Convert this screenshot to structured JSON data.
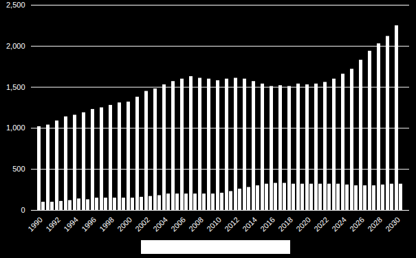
{
  "chart_data": {
    "type": "bar",
    "categories": [
      "1990",
      null,
      "1992",
      null,
      "1994",
      null,
      "1996",
      null,
      "1998",
      null,
      "2000",
      null,
      "2002",
      null,
      "2004",
      null,
      "2006",
      null,
      "2008",
      null,
      "2010",
      null,
      "2012",
      null,
      "2014",
      null,
      "2016",
      null,
      "2018",
      null,
      "2020",
      null,
      "2022",
      null,
      "2024",
      null,
      "2026",
      null,
      "2028",
      null,
      "2030"
    ],
    "series": [
      {
        "color": "#ffffff",
        "values": [
          1020,
          1040,
          1090,
          1140,
          1160,
          1190,
          1230,
          1250,
          1280,
          1310,
          1320,
          1380,
          1450,
          1480,
          1530,
          1570,
          1600,
          1630,
          1610,
          1600,
          1580,
          1600,
          1610,
          1600,
          1570,
          1540,
          1510,
          1520,
          1510,
          1540,
          1530,
          1540,
          1560,
          1600,
          1660,
          1720,
          1830,
          1940,
          2030,
          2120,
          2250
        ]
      },
      {
        "color": "#ffffff",
        "values": [
          100,
          100,
          110,
          120,
          140,
          130,
          150,
          150,
          150,
          150,
          150,
          160,
          170,
          180,
          200,
          200,
          200,
          200,
          200,
          200,
          210,
          230,
          260,
          280,
          300,
          320,
          330,
          330,
          320,
          320,
          320,
          320,
          320,
          320,
          310,
          300,
          300,
          300,
          310,
          320,
          320
        ]
      }
    ],
    "ylim": [
      0,
      2500
    ],
    "yticks": [
      0,
      500,
      1000,
      1500,
      2000,
      2500
    ],
    "grid": true
  }
}
